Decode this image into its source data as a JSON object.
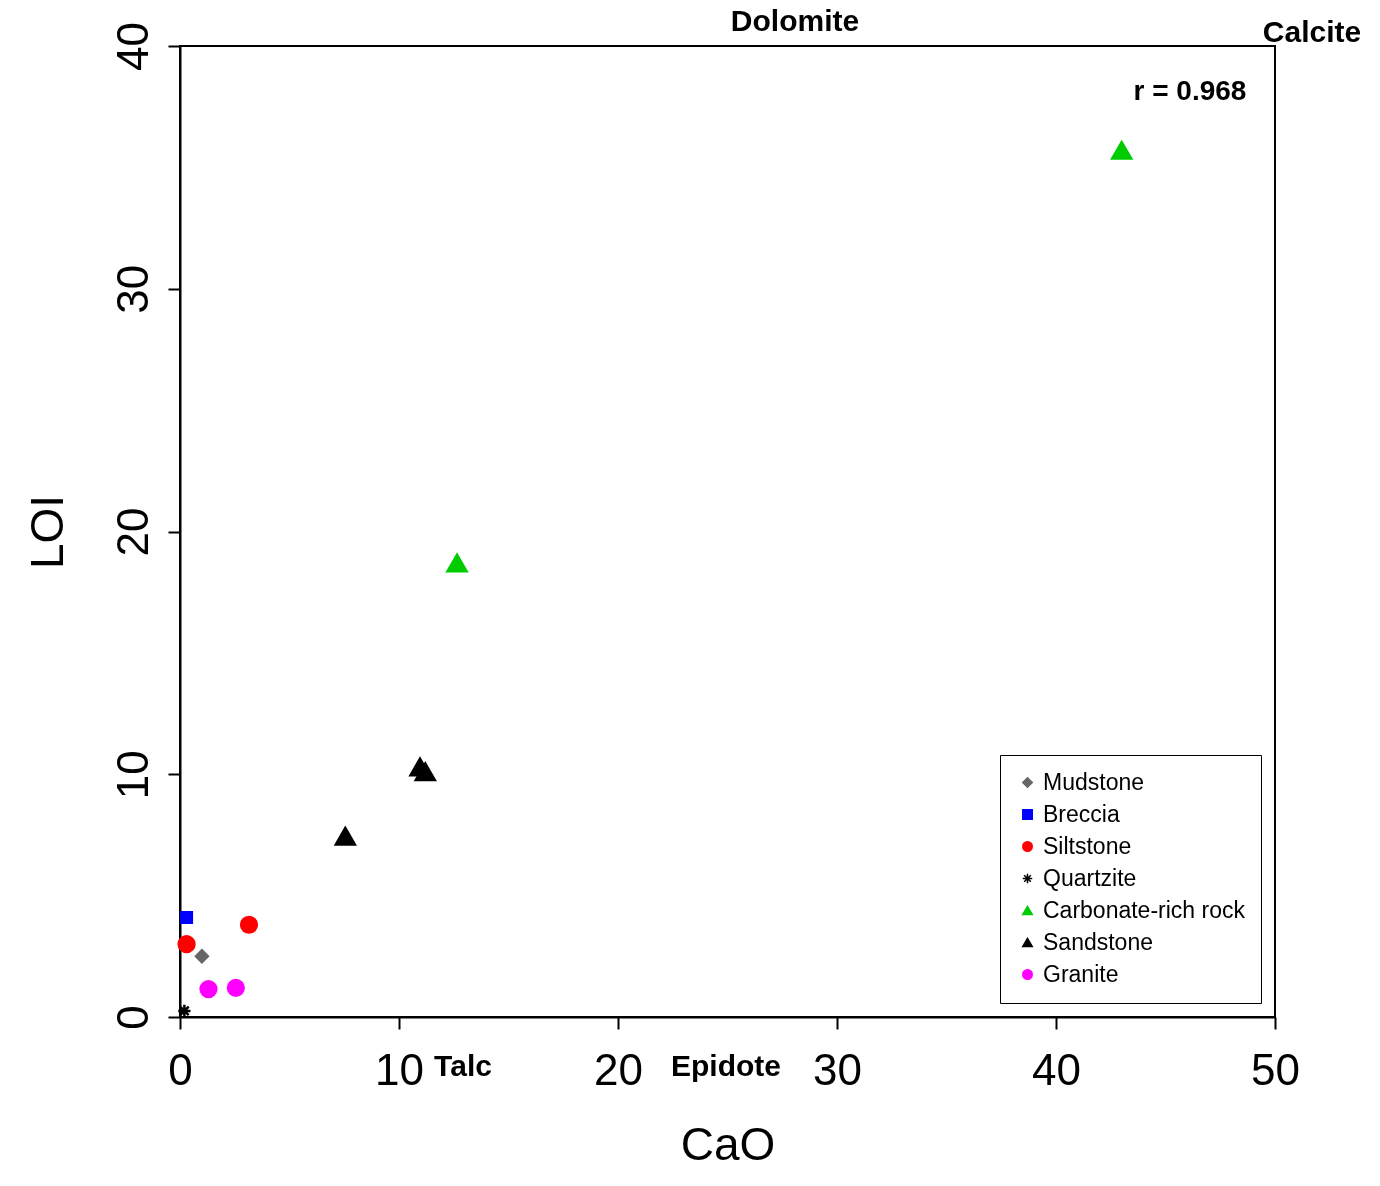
{
  "chart_data": {
    "type": "scatter",
    "xlabel": "CaO",
    "ylabel": "LOI",
    "xlim": [
      0,
      50
    ],
    "xticks": [
      0,
      10,
      20,
      30,
      40,
      50
    ],
    "ylim": [
      0,
      40
    ],
    "yticks": [
      0,
      10,
      20,
      30,
      40
    ],
    "grid": false,
    "legend": "bottom right",
    "annotations": [
      "Dolomite",
      "Calcite",
      "Talc",
      "Epidote",
      "r = 0.968"
    ],
    "series": [
      {
        "name": "Mudstone",
        "color": "#666666",
        "marker": "diamond",
        "x": [
          1.0
        ],
        "values": [
          2.5
        ]
      },
      {
        "name": "Breccia",
        "color": "#0000ff",
        "marker": "square",
        "x": [
          0.3
        ],
        "values": [
          4.1
        ]
      },
      {
        "name": "Siltstone",
        "color": "#ff0000",
        "marker": "circle",
        "x": [
          0.3,
          3.15
        ],
        "values": [
          3.0,
          3.8
        ]
      },
      {
        "name": "Quartzite",
        "color": "#000000",
        "marker": "cross",
        "x": [
          0.2
        ],
        "values": [
          0.25
        ]
      },
      {
        "name": "Carbonate-rich rock",
        "color": "#00cc00",
        "marker": "triangle",
        "x": [
          12.65,
          43.0
        ],
        "values": [
          18.7,
          35.7
        ]
      },
      {
        "name": "Sandstone",
        "color": "#000000",
        "marker": "triangle",
        "x": [
          7.55,
          10.96,
          11.2
        ],
        "values": [
          7.45,
          10.3,
          10.1
        ]
      },
      {
        "name": "Granite",
        "color": "#ff00ff",
        "marker": "circle",
        "x": [
          1.3,
          2.55
        ],
        "values": [
          1.15,
          1.2
        ]
      }
    ]
  }
}
